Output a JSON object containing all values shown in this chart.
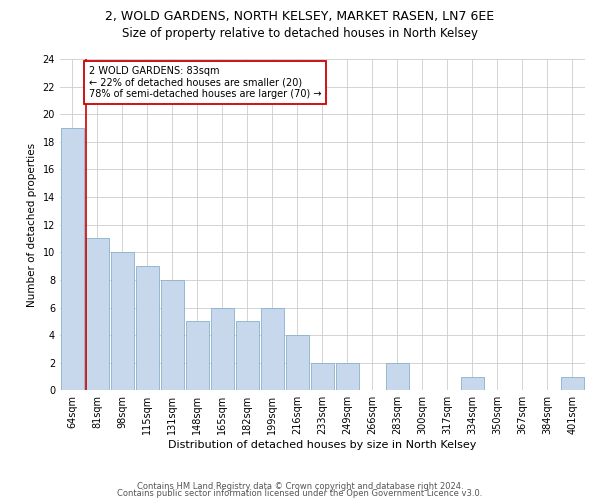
{
  "title1": "2, WOLD GARDENS, NORTH KELSEY, MARKET RASEN, LN7 6EE",
  "title2": "Size of property relative to detached houses in North Kelsey",
  "xlabel": "Distribution of detached houses by size in North Kelsey",
  "ylabel": "Number of detached properties",
  "categories": [
    "64sqm",
    "81sqm",
    "98sqm",
    "115sqm",
    "131sqm",
    "148sqm",
    "165sqm",
    "182sqm",
    "199sqm",
    "216sqm",
    "233sqm",
    "249sqm",
    "266sqm",
    "283sqm",
    "300sqm",
    "317sqm",
    "334sqm",
    "350sqm",
    "367sqm",
    "384sqm",
    "401sqm"
  ],
  "values": [
    19,
    11,
    10,
    9,
    8,
    5,
    6,
    5,
    6,
    4,
    2,
    2,
    0,
    2,
    0,
    0,
    1,
    0,
    0,
    0,
    1
  ],
  "bar_color": "#c8d8ec",
  "bar_edge_color": "#8ab0cc",
  "subject_line_color": "#cc0000",
  "annotation_text": "2 WOLD GARDENS: 83sqm\n← 22% of detached houses are smaller (20)\n78% of semi-detached houses are larger (70) →",
  "annotation_box_color": "#cc0000",
  "ylim": [
    0,
    24
  ],
  "yticks": [
    0,
    2,
    4,
    6,
    8,
    10,
    12,
    14,
    16,
    18,
    20,
    22,
    24
  ],
  "grid_color": "#cccccc",
  "footer1": "Contains HM Land Registry data © Crown copyright and database right 2024.",
  "footer2": "Contains public sector information licensed under the Open Government Licence v3.0.",
  "title1_fontsize": 9,
  "title2_fontsize": 8.5,
  "xlabel_fontsize": 8,
  "ylabel_fontsize": 7.5,
  "tick_fontsize": 7,
  "annotation_fontsize": 7,
  "footer_fontsize": 6,
  "background_color": "#ffffff"
}
